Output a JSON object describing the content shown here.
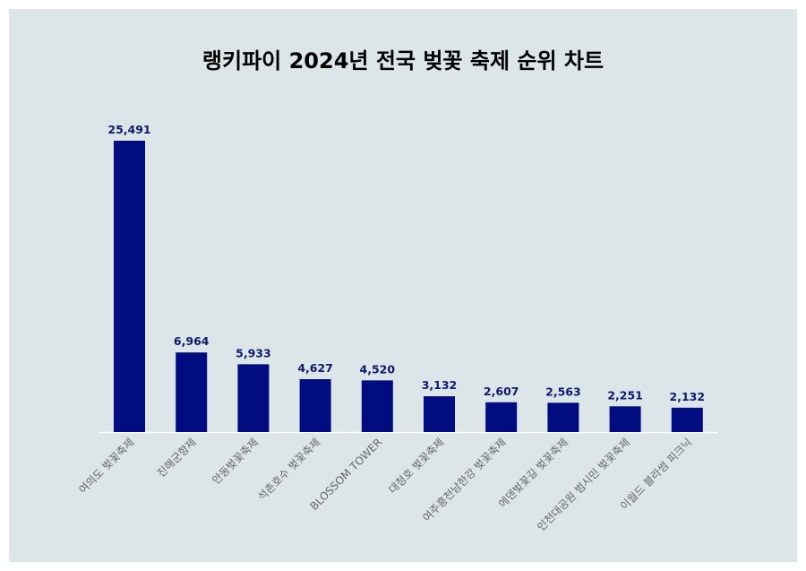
{
  "chart_data": {
    "type": "bar",
    "title": "랭키파이 2024년 전국 벚꽃 축제 순위 차트",
    "xlabel": "",
    "ylabel": "",
    "categories": [
      "여의도 벚꽃축제",
      "진해군항제",
      "안동벚꽃축제",
      "석촌호수 벚꽃축제",
      "BLOSSOM TOWER",
      "대청호 벚꽃축제",
      "여주흥천남한강 벚꽃축제",
      "에덴벚꽃길 벚꽃축제",
      "인천대공원 범시민 벚꽃축제",
      "이월드 블라썸 피크닉"
    ],
    "values": [
      25491,
      6964,
      5933,
      4627,
      4520,
      3132,
      2607,
      2563,
      2251,
      2132
    ],
    "value_labels": [
      "25,491",
      "6,964",
      "5,933",
      "4,627",
      "4,520",
      "3,132",
      "2,607",
      "2,563",
      "2,251",
      "2,132"
    ],
    "ylim": [
      0,
      25491
    ],
    "grid": false,
    "colors": {
      "bar": "#000c80",
      "value_label": "#0d1a6e",
      "tick_label": "#666666",
      "background": "#dce5e8"
    }
  }
}
